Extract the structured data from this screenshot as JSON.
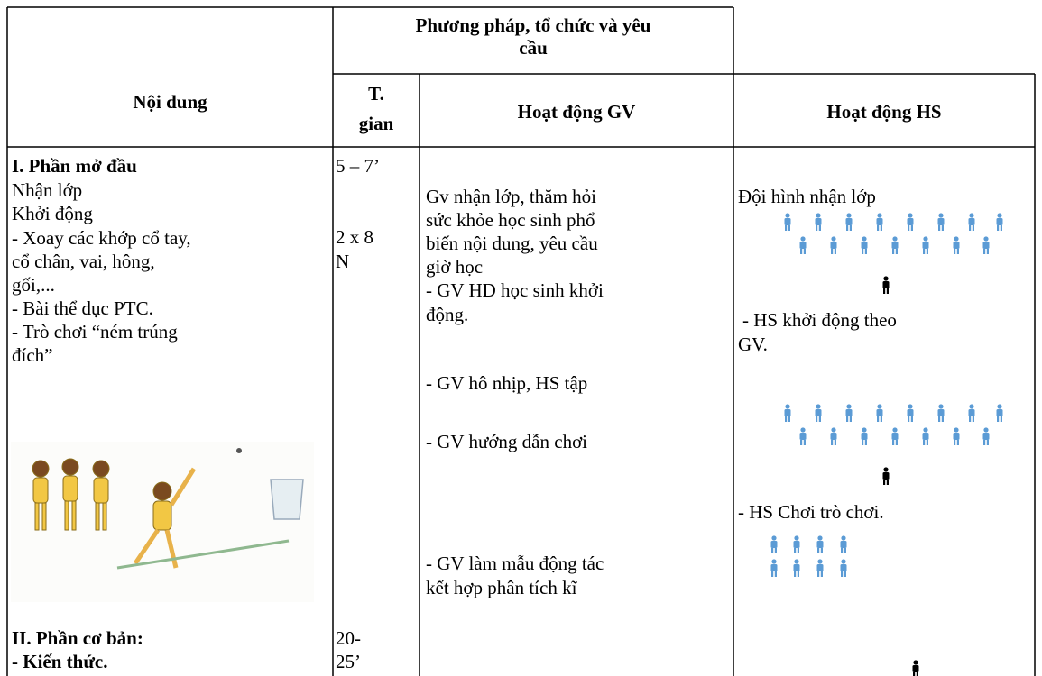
{
  "header": {
    "content": "Nội dung",
    "method": [
      "Phương pháp, tổ chức và yêu",
      "cầu"
    ],
    "time": [
      "T.",
      "gian"
    ],
    "teacher": "Hoạt động GV",
    "student": "Hoạt động HS"
  },
  "rows": [
    {
      "content": [
        "I. Phần mở đầu",
        "Nhận lớp",
        "Khởi động",
        "- Xoay các khớp cổ tay,",
        "cổ chân, vai, hông,",
        "gối,...",
        "- Bài thể dục PTC.",
        "- Trò chơi “ném trúng",
        "đích”",
        "II. Phần cơ bản:",
        "- Kiến thức."
      ],
      "time": [
        "5 – 7’",
        "2 x 8",
        "N",
        "20-",
        "25’"
      ],
      "teacher": [
        "Gv nhận lớp, thăm hỏi",
        "sức khỏe học sinh phổ",
        "biến nội dung, yêu cầu",
        "giờ học",
        "- GV HD học sinh khởi",
        "động.",
        "- GV hô nhịp, HS tập",
        "- GV hướng dẫn chơi",
        "- GV làm mẫu động tác",
        "kết hợp phân tích kĩ"
      ],
      "student": [
        "Đội hình nhận lớp",
        "- HS khởi động theo",
        "GV.",
        "- HS Chơi trò chơi."
      ]
    }
  ]
}
